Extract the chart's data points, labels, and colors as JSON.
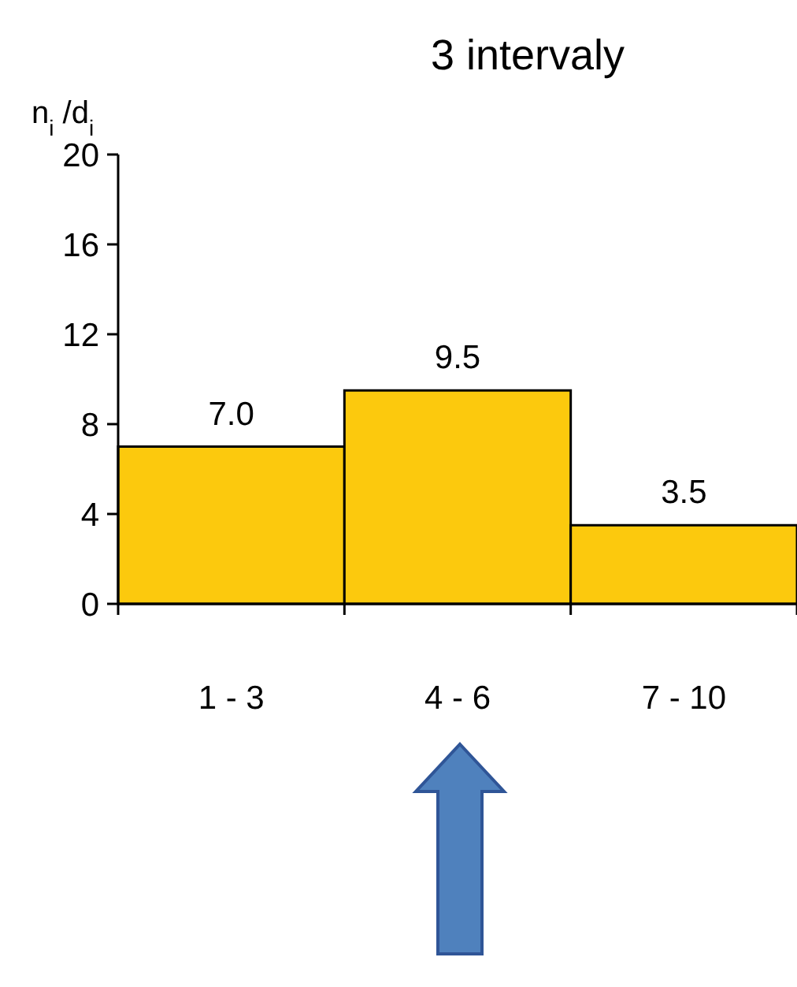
{
  "chart_data": {
    "type": "bar",
    "title": "3 intervaly",
    "ylabel": "n$_{i}$ /d$_{i}$",
    "categories": [
      "1 - 3",
      "4 - 6",
      "7 - 10"
    ],
    "values": [
      7.0,
      9.5,
      3.5
    ],
    "value_labels": [
      "7.0",
      "9.5",
      "3.5"
    ],
    "color": "#fcc90d",
    "ylim": [
      0,
      20
    ],
    "yticks": [
      0,
      4,
      8,
      12,
      16,
      20
    ]
  }
}
